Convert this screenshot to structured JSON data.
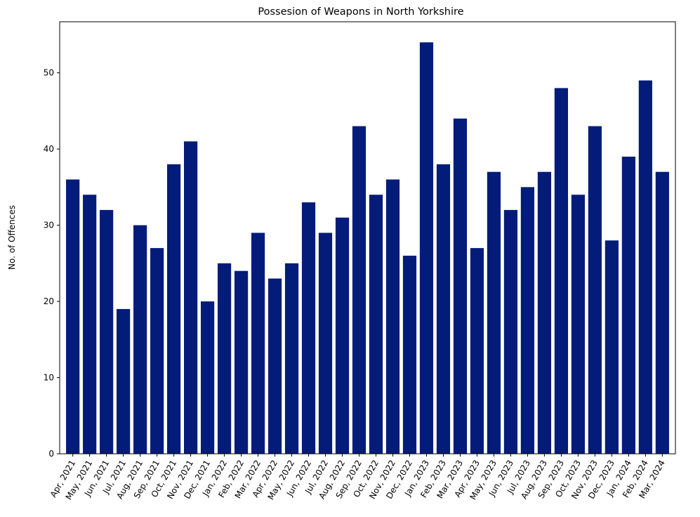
{
  "chart_data": {
    "type": "bar",
    "title": "Possesion of Weapons in North Yorkshire",
    "xlabel": "",
    "ylabel": "No. of Offences",
    "ylim": [
      0,
      56.7
    ],
    "yticks": [
      0,
      10,
      20,
      30,
      40,
      50
    ],
    "bar_color": "#031c7a",
    "grid": false,
    "categories": [
      "Apr, 2021",
      "May, 2021",
      "Jun, 2021",
      "Jul, 2021",
      "Aug, 2021",
      "Sep, 2021",
      "Oct, 2021",
      "Nov, 2021",
      "Dec, 2021",
      "Jan, 2022",
      "Feb, 2022",
      "Mar, 2022",
      "Apr, 2022",
      "May, 2022",
      "Jun, 2022",
      "Jul, 2022",
      "Aug, 2022",
      "Sep, 2022",
      "Oct, 2022",
      "Nov, 2022",
      "Dec, 2022",
      "Jan, 2023",
      "Feb, 2023",
      "Mar, 2023",
      "Apr, 2023",
      "May, 2023",
      "Jun, 2023",
      "Jul, 2023",
      "Aug, 2023",
      "Sep, 2023",
      "Oct, 2023",
      "Nov, 2023",
      "Dec, 2023",
      "Jan, 2024",
      "Feb, 2024",
      "Mar, 2024"
    ],
    "values": [
      36,
      34,
      32,
      19,
      30,
      27,
      38,
      41,
      20,
      25,
      24,
      29,
      23,
      25,
      33,
      29,
      31,
      43,
      34,
      36,
      26,
      54,
      38,
      44,
      27,
      37,
      32,
      35,
      37,
      48,
      34,
      43,
      28,
      39,
      49,
      37
    ]
  }
}
